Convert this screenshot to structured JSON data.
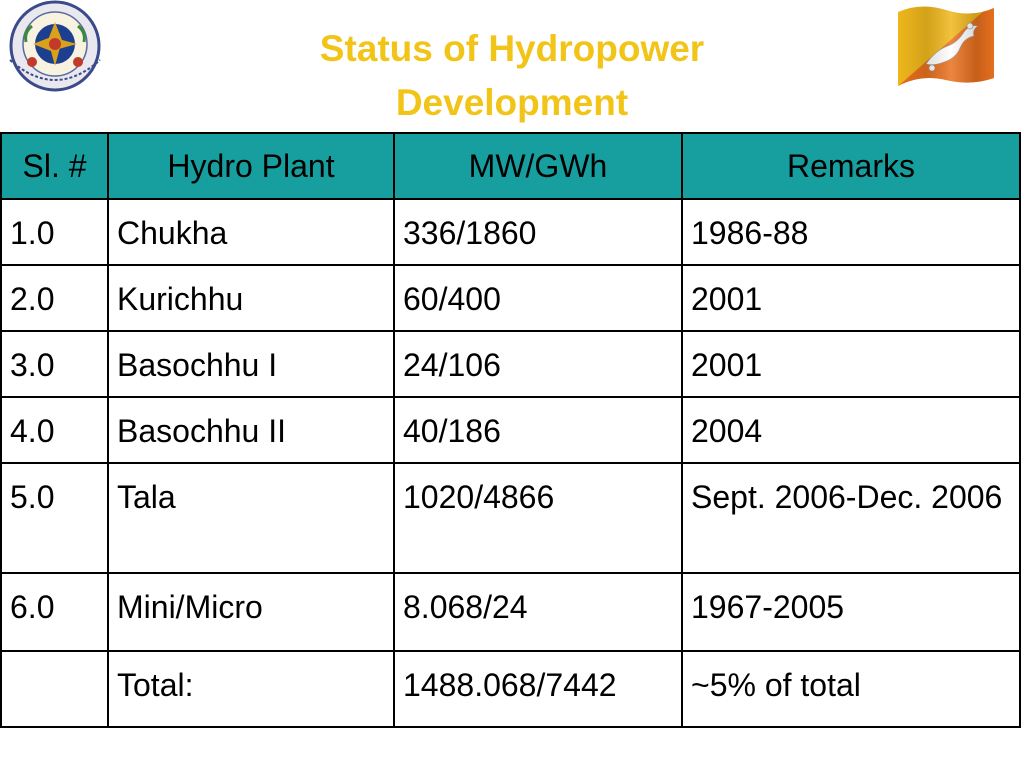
{
  "header": {
    "title_line1": "Status of Hydropower",
    "title_line2": "Development",
    "emblem_icon": "royal-emblem-icon",
    "flag_icon": "bhutan-flag-icon",
    "accent_color": "#f2c418",
    "table_header_color": "#179e9e"
  },
  "table": {
    "columns": [
      "Sl. #",
      "Hydro Plant",
      "MW/GWh",
      "Remarks"
    ],
    "rows": [
      {
        "sl": "1.0",
        "plant": "Chukha",
        "capacity": "336/1860",
        "remarks": "1986-88"
      },
      {
        "sl": "2.0",
        "plant": "Kurichhu",
        "capacity": "60/400",
        "remarks": "2001"
      },
      {
        "sl": "3.0",
        "plant": "Basochhu I",
        "capacity": "24/106",
        "remarks": "2001"
      },
      {
        "sl": "4.0",
        "plant": "Basochhu II",
        "capacity": "40/186",
        "remarks": "2004"
      },
      {
        "sl": "5.0",
        "plant": "Tala",
        "capacity": "1020/4866",
        "remarks": "Sept. 2006-Dec. 2006"
      },
      {
        "sl": "6.0",
        "plant": "Mini/Micro",
        "capacity": "8.068/24",
        "remarks": "1967-2005"
      }
    ],
    "total": {
      "sl": "",
      "plant": "Total:",
      "capacity": "1488.068/7442",
      "remarks": "~5% of total"
    }
  }
}
